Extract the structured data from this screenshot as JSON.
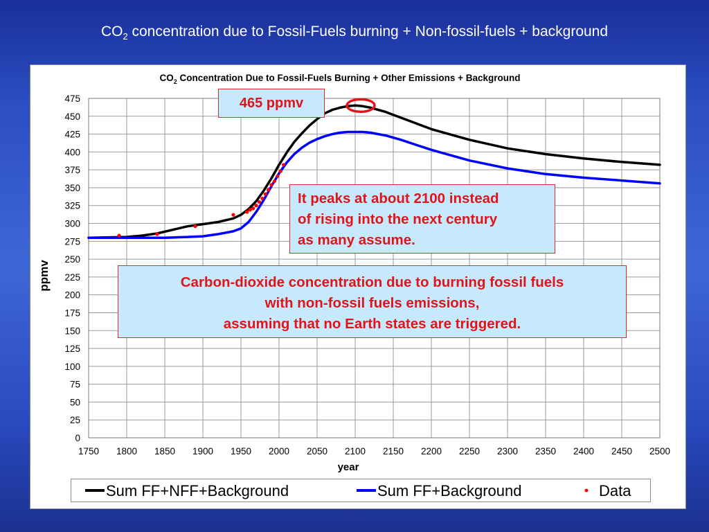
{
  "slide": {
    "title_prefix": "CO",
    "title_sub": "2",
    "title_rest": " concentration due to Fossil-Fuels burning + Non-fossil-fuels + background"
  },
  "chart_data": {
    "type": "line",
    "title_prefix": "CO",
    "title_sub": "2",
    "title_rest": " Concentration Due to Fossil-Fuels Burning + Other Emissions + Background",
    "xlabel": "year",
    "ylabel": "ppmv",
    "xlim": [
      1750,
      2500
    ],
    "ylim": [
      0,
      475
    ],
    "xticks": [
      1750,
      1800,
      1850,
      1900,
      1950,
      2000,
      2050,
      2100,
      2150,
      2200,
      2250,
      2300,
      2350,
      2400,
      2450,
      2500
    ],
    "yticks": [
      0,
      25,
      50,
      75,
      100,
      125,
      150,
      175,
      200,
      225,
      250,
      275,
      300,
      325,
      350,
      375,
      400,
      425,
      450,
      475
    ],
    "grid": true,
    "legend_position": "bottom",
    "series": [
      {
        "name": "Sum FF+NFF+Background",
        "color": "#000000",
        "style": "line",
        "x": [
          1750,
          1800,
          1820,
          1840,
          1860,
          1880,
          1900,
          1920,
          1940,
          1950,
          1960,
          1970,
          1980,
          1990,
          2000,
          2010,
          2020,
          2030,
          2040,
          2050,
          2060,
          2070,
          2080,
          2090,
          2100,
          2110,
          2120,
          2140,
          2160,
          2180,
          2200,
          2250,
          2300,
          2350,
          2400,
          2450,
          2500
        ],
        "y": [
          280,
          281,
          283,
          286,
          291,
          296,
          299,
          302,
          307,
          312,
          320,
          331,
          346,
          363,
          382,
          399,
          414,
          426,
          437,
          446,
          454,
          459,
          462,
          464,
          465,
          464,
          462,
          456,
          448,
          440,
          432,
          417,
          405,
          397,
          391,
          386,
          382
        ]
      },
      {
        "name": "Sum FF+Background",
        "color": "#0000ff",
        "style": "line",
        "x": [
          1750,
          1800,
          1850,
          1880,
          1900,
          1920,
          1940,
          1950,
          1960,
          1970,
          1980,
          1990,
          2000,
          2010,
          2020,
          2030,
          2040,
          2050,
          2060,
          2070,
          2080,
          2090,
          2100,
          2110,
          2120,
          2140,
          2160,
          2180,
          2200,
          2250,
          2300,
          2350,
          2400,
          2450,
          2500
        ],
        "y": [
          280,
          280,
          280,
          281,
          282,
          285,
          289,
          293,
          302,
          316,
          333,
          352,
          370,
          385,
          397,
          406,
          413,
          418,
          422,
          425,
          427,
          428,
          428,
          428,
          427,
          423,
          417,
          410,
          403,
          388,
          377,
          369,
          364,
          360,
          356
        ]
      },
      {
        "name": "Data",
        "color": "#ff0000",
        "style": "points",
        "x": [
          1790,
          1840,
          1890,
          1940,
          1958,
          1962,
          1966,
          1970,
          1974,
          1978,
          1982,
          1986,
          1990,
          1994,
          1998,
          2002,
          2006
        ],
        "y": [
          283,
          285,
          296,
          312,
          316,
          319,
          321,
          325,
          330,
          335,
          341,
          347,
          354,
          359,
          366,
          373,
          382
        ]
      }
    ]
  },
  "annotations": {
    "peak_value": "465 ppmv",
    "peak_note": [
      "It peaks at about 2100 instead",
      "of rising into the next century",
      "as many assume."
    ],
    "scenario_note": [
      "Carbon-dioxide concentration due to burning fossil fuels",
      "with non-fossil fuels emissions,",
      "assuming that no Earth states are triggered."
    ],
    "peak_marker_color": "#e0141b"
  }
}
